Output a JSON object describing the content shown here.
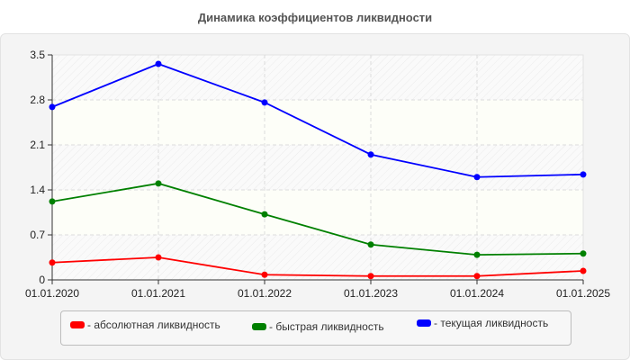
{
  "chart_data": {
    "type": "line",
    "title": "Динамика коэффициентов ликвидности",
    "xlabel": "",
    "ylabel": "",
    "x": [
      "01.01.2020",
      "01.01.2021",
      "01.01.2022",
      "01.01.2023",
      "01.01.2024",
      "01.01.2025"
    ],
    "yticks": [
      "0",
      "0.7",
      "1.4",
      "2.1",
      "2.8",
      "3.5"
    ],
    "ylim": [
      0,
      3.5
    ],
    "grid": true,
    "legend_position": "bottom",
    "series": [
      {
        "name": "абсолютная ликвидность",
        "color": "#ff0000",
        "values": [
          0.27,
          0.35,
          0.08,
          0.06,
          0.06,
          0.14
        ]
      },
      {
        "name": "быстрая ликвидность",
        "color": "#008000",
        "values": [
          1.22,
          1.5,
          1.02,
          0.55,
          0.39,
          0.41
        ]
      },
      {
        "name": "текущая ликвидность",
        "color": "#0000ff",
        "values": [
          2.69,
          3.36,
          2.76,
          1.95,
          1.6,
          1.64
        ]
      }
    ]
  },
  "legend": {
    "items": [
      {
        "label": "- абсолютная ликвидность",
        "color": "#ff0000"
      },
      {
        "label": "- быстрая ликвидность",
        "color": "#008000"
      },
      {
        "label": "- текущая ликвидность",
        "color": "#0000ff"
      }
    ]
  }
}
